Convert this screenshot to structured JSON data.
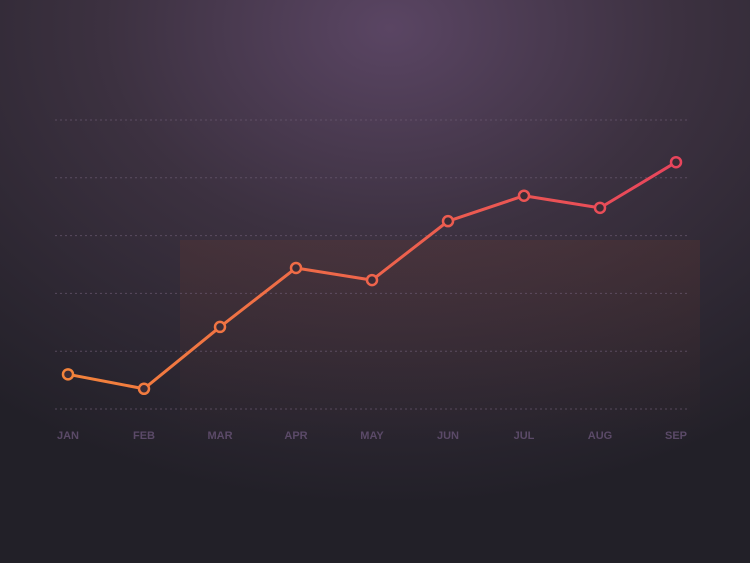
{
  "chart_data": {
    "type": "line",
    "categories": [
      "JAN",
      "FEB",
      "MAR",
      "APR",
      "MAY",
      "JUN",
      "JUL",
      "AUG",
      "SEP"
    ],
    "values": [
      0.6,
      0.35,
      1.42,
      2.44,
      2.23,
      3.25,
      3.69,
      3.48,
      4.27
    ],
    "color": "#f3833b",
    "color_end": "#e8455c",
    "ylim": [
      0,
      5
    ],
    "yticks": [
      0,
      1,
      2,
      3,
      4,
      5
    ],
    "grid": true
  }
}
